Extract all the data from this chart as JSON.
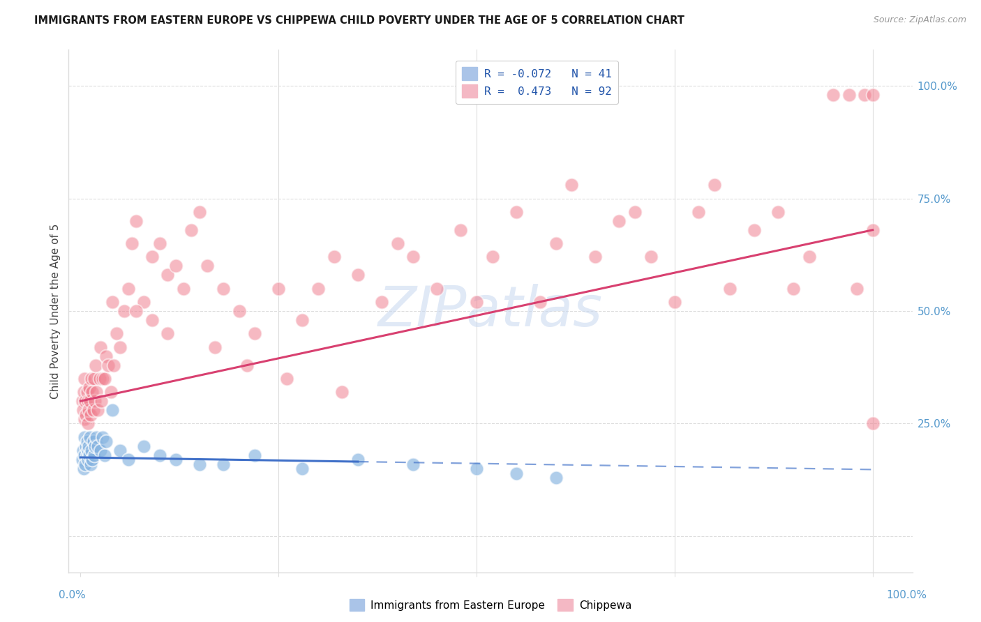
{
  "title": "IMMIGRANTS FROM EASTERN EUROPE VS CHIPPEWA CHILD POVERTY UNDER THE AGE OF 5 CORRELATION CHART",
  "source": "Source: ZipAtlas.com",
  "ylabel": "Child Poverty Under the Age of 5",
  "blue_R": -0.072,
  "blue_N": 41,
  "pink_R": 0.473,
  "pink_N": 92,
  "blue_scatter_color": "#85b3e0",
  "pink_scatter_color": "#f08090",
  "blue_line_color": "#4070c8",
  "pink_line_color": "#d84070",
  "watermark_color": "#c8d8f0",
  "background_color": "#ffffff",
  "grid_color": "#dddddd",
  "right_tick_color": "#5599cc",
  "blue_x": [
    0.002,
    0.003,
    0.004,
    0.005,
    0.005,
    0.006,
    0.007,
    0.008,
    0.008,
    0.009,
    0.009,
    0.01,
    0.011,
    0.012,
    0.013,
    0.014,
    0.015,
    0.016,
    0.017,
    0.018,
    0.02,
    0.022,
    0.025,
    0.028,
    0.03,
    0.032,
    0.04,
    0.05,
    0.06,
    0.08,
    0.1,
    0.12,
    0.15,
    0.18,
    0.22,
    0.28,
    0.35,
    0.42,
    0.5,
    0.55,
    0.6
  ],
  "blue_y": [
    0.17,
    0.19,
    0.15,
    0.18,
    0.22,
    0.16,
    0.2,
    0.18,
    0.21,
    0.17,
    0.19,
    0.2,
    0.18,
    0.22,
    0.16,
    0.19,
    0.17,
    0.21,
    0.18,
    0.2,
    0.22,
    0.2,
    0.19,
    0.22,
    0.18,
    0.21,
    0.28,
    0.19,
    0.17,
    0.2,
    0.18,
    0.17,
    0.16,
    0.16,
    0.18,
    0.15,
    0.17,
    0.16,
    0.15,
    0.14,
    0.13
  ],
  "pink_x": [
    0.002,
    0.003,
    0.004,
    0.005,
    0.005,
    0.006,
    0.007,
    0.008,
    0.009,
    0.009,
    0.01,
    0.011,
    0.012,
    0.013,
    0.014,
    0.015,
    0.016,
    0.017,
    0.018,
    0.019,
    0.02,
    0.022,
    0.024,
    0.025,
    0.026,
    0.028,
    0.03,
    0.032,
    0.035,
    0.038,
    0.04,
    0.042,
    0.045,
    0.05,
    0.055,
    0.06,
    0.065,
    0.07,
    0.08,
    0.09,
    0.1,
    0.11,
    0.12,
    0.13,
    0.14,
    0.15,
    0.16,
    0.18,
    0.2,
    0.22,
    0.25,
    0.28,
    0.3,
    0.32,
    0.35,
    0.38,
    0.4,
    0.42,
    0.45,
    0.48,
    0.5,
    0.52,
    0.55,
    0.58,
    0.6,
    0.62,
    0.65,
    0.68,
    0.7,
    0.72,
    0.75,
    0.78,
    0.8,
    0.82,
    0.85,
    0.88,
    0.9,
    0.92,
    0.95,
    0.97,
    0.98,
    0.99,
    1.0,
    1.0,
    1.0,
    0.07,
    0.09,
    0.11,
    0.17,
    0.21,
    0.26,
    0.33
  ],
  "pink_y": [
    0.3,
    0.28,
    0.32,
    0.26,
    0.35,
    0.3,
    0.27,
    0.32,
    0.25,
    0.3,
    0.28,
    0.33,
    0.3,
    0.27,
    0.35,
    0.32,
    0.28,
    0.35,
    0.3,
    0.38,
    0.32,
    0.28,
    0.35,
    0.42,
    0.3,
    0.35,
    0.35,
    0.4,
    0.38,
    0.32,
    0.52,
    0.38,
    0.45,
    0.42,
    0.5,
    0.55,
    0.65,
    0.7,
    0.52,
    0.62,
    0.65,
    0.58,
    0.6,
    0.55,
    0.68,
    0.72,
    0.6,
    0.55,
    0.5,
    0.45,
    0.55,
    0.48,
    0.55,
    0.62,
    0.58,
    0.52,
    0.65,
    0.62,
    0.55,
    0.68,
    0.52,
    0.62,
    0.72,
    0.52,
    0.65,
    0.78,
    0.62,
    0.7,
    0.72,
    0.62,
    0.52,
    0.72,
    0.78,
    0.55,
    0.68,
    0.72,
    0.55,
    0.62,
    0.98,
    0.98,
    0.55,
    0.98,
    0.98,
    0.68,
    0.25,
    0.5,
    0.48,
    0.45,
    0.42,
    0.38,
    0.35,
    0.32
  ],
  "blue_line_start_x": 0.0,
  "blue_line_end_solid_x": 0.35,
  "blue_line_end_x": 1.0,
  "pink_line_start_x": 0.0,
  "pink_line_end_x": 1.0,
  "blue_line_y0": 0.175,
  "blue_line_y1": 0.148,
  "pink_line_y0": 0.3,
  "pink_line_y1": 0.68,
  "xlim": [
    -0.015,
    1.05
  ],
  "ylim": [
    -0.08,
    1.08
  ]
}
